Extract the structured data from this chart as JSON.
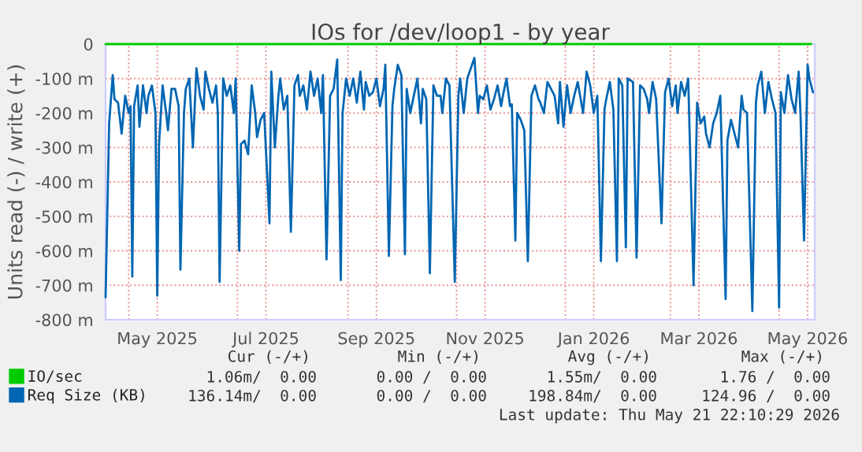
{
  "chart_data": {
    "type": "line",
    "title": "IOs for /dev/loop1 - by year",
    "ylabel": "Units read (-) / write (+)",
    "xlim": [
      "2025-04-18",
      "2026-05-21"
    ],
    "xticks": [
      {
        "value": "2025-05-01",
        "label": null
      },
      {
        "value": "2025-05-17",
        "label": "May 2025"
      },
      {
        "value": "2025-07-01",
        "label": null
      },
      {
        "value": "2025-07-17",
        "label": "Jul 2025"
      },
      {
        "value": "2025-09-01",
        "label": null
      },
      {
        "value": "2025-09-17",
        "label": "Sep 2025"
      },
      {
        "value": "2025-11-01",
        "label": null
      },
      {
        "value": "2025-11-17",
        "label": "Nov 2025"
      },
      {
        "value": "2026-01-01",
        "label": null
      },
      {
        "value": "2026-01-17",
        "label": "Jan 2026"
      },
      {
        "value": "2026-03-01",
        "label": null
      },
      {
        "value": "2026-03-17",
        "label": "Mar 2026"
      },
      {
        "value": "2026-05-01",
        "label": null
      },
      {
        "value": "2026-05-17",
        "label": "May 2026"
      }
    ],
    "ylim": [
      -800,
      0
    ],
    "yticks": [
      {
        "value": -800,
        "label": "-800 m"
      },
      {
        "value": -700,
        "label": "-700 m"
      },
      {
        "value": -600,
        "label": "-600 m"
      },
      {
        "value": -500,
        "label": "-500 m"
      },
      {
        "value": -400,
        "label": "-400 m"
      },
      {
        "value": -300,
        "label": "-300 m"
      },
      {
        "value": -200,
        "label": "-200 m"
      },
      {
        "value": -100,
        "label": "-100 m"
      },
      0
    ],
    "grid": true,
    "legend": "bottom",
    "line_style": "solid",
    "annotations": [
      "Cur (-/+)",
      "Min (-/+)",
      "Avg (-/+)",
      "Max (-/+)",
      "1.06m/  0.00",
      "0.00 /  0.00",
      "1.55m/  0.00",
      "1.76 /  0.00",
      "136.14m/  0.00",
      "0.00 /  0.00",
      "198.84m/  0.00",
      "124.96 /  0.00",
      "Last update: Thu May 21 22:10:29 2026"
    ],
    "series": [
      {
        "name": "IO/sec",
        "color": "#00cc00",
        "x": [
          "2025-04-18",
          "2026-05-19"
        ],
        "values": [
          0,
          0
        ]
      },
      {
        "name": "Req Size (KB)",
        "color": "#0066b3",
        "x": [
          "2025-04-18",
          "2025-04-20",
          "2025-04-22",
          "2025-04-23",
          "2025-04-25",
          "2025-04-27",
          "2025-04-29",
          "2025-05-01",
          "2025-05-02",
          "2025-05-03",
          "2025-05-04",
          "2025-05-06",
          "2025-05-07",
          "2025-05-09",
          "2025-05-11",
          "2025-05-12",
          "2025-05-14",
          "2025-05-16",
          "2025-05-17",
          "2025-05-18",
          "2025-05-20",
          "2025-05-22",
          "2025-05-23",
          "2025-05-25",
          "2025-05-27",
          "2025-05-29",
          "2025-05-30",
          "2025-06-01",
          "2025-06-02",
          "2025-06-04",
          "2025-06-06",
          "2025-06-08",
          "2025-06-10",
          "2025-06-12",
          "2025-06-13",
          "2025-06-15",
          "2025-06-17",
          "2025-06-19",
          "2025-06-20",
          "2025-06-21",
          "2025-06-23",
          "2025-06-25",
          "2025-06-27",
          "2025-06-29",
          "2025-06-30",
          "2025-07-02",
          "2025-07-03",
          "2025-07-05",
          "2025-07-07",
          "2025-07-09",
          "2025-07-11",
          "2025-07-12",
          "2025-07-14",
          "2025-07-16",
          "2025-07-19",
          "2025-07-20",
          "2025-07-22",
          "2025-07-24",
          "2025-07-25",
          "2025-07-27",
          "2025-07-29",
          "2025-07-31",
          "2025-08-02",
          "2025-08-04",
          "2025-08-05",
          "2025-08-07",
          "2025-08-09",
          "2025-08-11",
          "2025-08-13",
          "2025-08-15",
          "2025-08-17",
          "2025-08-18",
          "2025-08-20",
          "2025-08-22",
          "2025-08-24",
          "2025-08-26",
          "2025-08-28",
          "2025-08-29",
          "2025-08-31",
          "2025-09-02",
          "2025-09-04",
          "2025-09-06",
          "2025-09-08",
          "2025-09-10",
          "2025-09-11",
          "2025-09-13",
          "2025-09-15",
          "2025-09-17",
          "2025-09-19",
          "2025-09-21",
          "2025-09-22",
          "2025-09-24",
          "2025-09-26",
          "2025-09-27",
          "2025-09-29",
          "2025-10-01",
          "2025-10-03",
          "2025-10-04",
          "2025-10-06",
          "2025-10-08",
          "2025-10-10",
          "2025-10-12",
          "2025-10-13",
          "2025-10-15",
          "2025-10-17",
          "2025-10-19",
          "2025-10-21",
          "2025-10-23",
          "2025-10-24",
          "2025-10-26",
          "2025-10-28",
          "2025-10-31",
          "2025-11-02",
          "2025-11-03",
          "2025-11-05",
          "2025-11-07",
          "2025-11-09",
          "2025-11-11",
          "2025-11-13",
          "2025-11-14",
          "2025-11-16",
          "2025-11-18",
          "2025-11-20",
          "2025-11-22",
          "2025-11-24",
          "2025-11-26",
          "2025-11-27",
          "2025-11-29",
          "2025-12-01",
          "2025-12-02",
          "2025-12-04",
          "2025-12-05",
          "2025-12-07",
          "2025-12-09",
          "2025-12-11",
          "2025-12-13",
          "2025-12-15",
          "2025-12-17",
          "2025-12-18",
          "2025-12-20",
          "2025-12-22",
          "2025-12-24",
          "2025-12-26",
          "2025-12-28",
          "2025-12-29",
          "2025-12-31",
          "2026-01-02",
          "2026-01-04",
          "2026-01-06",
          "2026-01-08",
          "2026-01-10",
          "2026-01-11",
          "2026-01-13",
          "2026-01-15",
          "2026-01-17",
          "2026-01-19",
          "2026-01-21",
          "2026-01-23",
          "2026-01-24",
          "2026-01-26",
          "2026-01-28",
          "2026-01-30",
          "2026-01-31",
          "2026-02-02",
          "2026-02-04",
          "2026-02-05",
          "2026-02-08",
          "2026-02-10",
          "2026-02-12",
          "2026-02-14",
          "2026-02-16",
          "2026-02-17",
          "2026-02-19",
          "2026-02-21",
          "2026-02-24",
          "2026-02-26",
          "2026-02-28",
          "2026-03-02",
          "2026-03-04",
          "2026-03-05",
          "2026-03-07",
          "2026-03-09",
          "2026-03-11",
          "2026-03-14",
          "2026-03-16",
          "2026-03-18",
          "2026-03-20",
          "2026-03-21",
          "2026-03-23",
          "2026-03-25",
          "2026-03-27",
          "2026-03-29",
          "2026-04-01",
          "2026-04-02",
          "2026-04-04",
          "2026-04-06",
          "2026-04-08",
          "2026-04-10",
          "2026-04-11",
          "2026-04-13",
          "2026-04-16",
          "2026-04-18",
          "2026-04-19",
          "2026-04-21",
          "2026-04-23",
          "2026-04-25",
          "2026-04-27",
          "2026-04-29",
          "2026-05-01",
          "2026-05-02",
          "2026-05-04",
          "2026-05-06",
          "2026-05-08",
          "2026-05-10",
          "2026-05-12",
          "2026-05-13",
          "2026-05-15",
          "2026-05-17",
          "2026-05-18",
          "2026-05-20"
        ],
        "values": [
          -735,
          -230,
          -90,
          -160,
          -170,
          -260,
          -150,
          -200,
          -180,
          -675,
          -180,
          -120,
          -240,
          -120,
          -200,
          -150,
          -120,
          -200,
          -730,
          -290,
          -120,
          -200,
          -250,
          -130,
          -130,
          -180,
          -655,
          -200,
          -130,
          -100,
          -300,
          -70,
          -150,
          -190,
          -80,
          -130,
          -170,
          -120,
          -200,
          -690,
          -100,
          -150,
          -120,
          -200,
          -100,
          -600,
          -290,
          -280,
          -320,
          -120,
          -200,
          -270,
          -220,
          -200,
          -520,
          -80,
          -300,
          -150,
          -100,
          -190,
          -150,
          -545,
          -120,
          -90,
          -150,
          -120,
          -190,
          -80,
          -150,
          -100,
          -200,
          -90,
          -625,
          -150,
          -130,
          -45,
          -685,
          -200,
          -100,
          -150,
          -100,
          -170,
          -80,
          -190,
          -110,
          -150,
          -140,
          -100,
          -180,
          -130,
          -60,
          -615,
          -180,
          -130,
          -60,
          -90,
          -610,
          -130,
          -200,
          -150,
          -100,
          -230,
          -130,
          -160,
          -665,
          -120,
          -150,
          -150,
          -200,
          -100,
          -120,
          -690,
          -150,
          -100,
          -200,
          -100,
          -70,
          -40,
          -200,
          -150,
          -160,
          -120,
          -190,
          -160,
          -120,
          -180,
          -150,
          -100,
          -180,
          -175,
          -570,
          -200,
          -220,
          -250,
          -630,
          -150,
          -120,
          -160,
          -170,
          -200,
          -110,
          -130,
          -150,
          -230,
          -110,
          -240,
          -120,
          -200,
          -150,
          -110,
          -170,
          -200,
          -80,
          -120,
          -200,
          -150,
          -630,
          -190,
          -160,
          -110,
          -190,
          -630,
          -100,
          -120,
          -590,
          -100,
          -110,
          -620,
          -120,
          -130,
          -160,
          -200,
          -110,
          -160,
          -520,
          -140,
          -100,
          -180,
          -120,
          -200,
          -110,
          -150,
          -100,
          -700,
          -170,
          -230,
          -210,
          -260,
          -300,
          -230,
          -200,
          -150,
          -740,
          -280,
          -220,
          -260,
          -300,
          -150,
          -190,
          -200,
          -775,
          -170,
          -120,
          -80,
          -200,
          -110,
          -160,
          -200,
          -765,
          -140,
          -200,
          -90,
          -160,
          -200,
          -80,
          -200,
          -570,
          -60,
          -100,
          -140
        ]
      }
    ]
  }
}
